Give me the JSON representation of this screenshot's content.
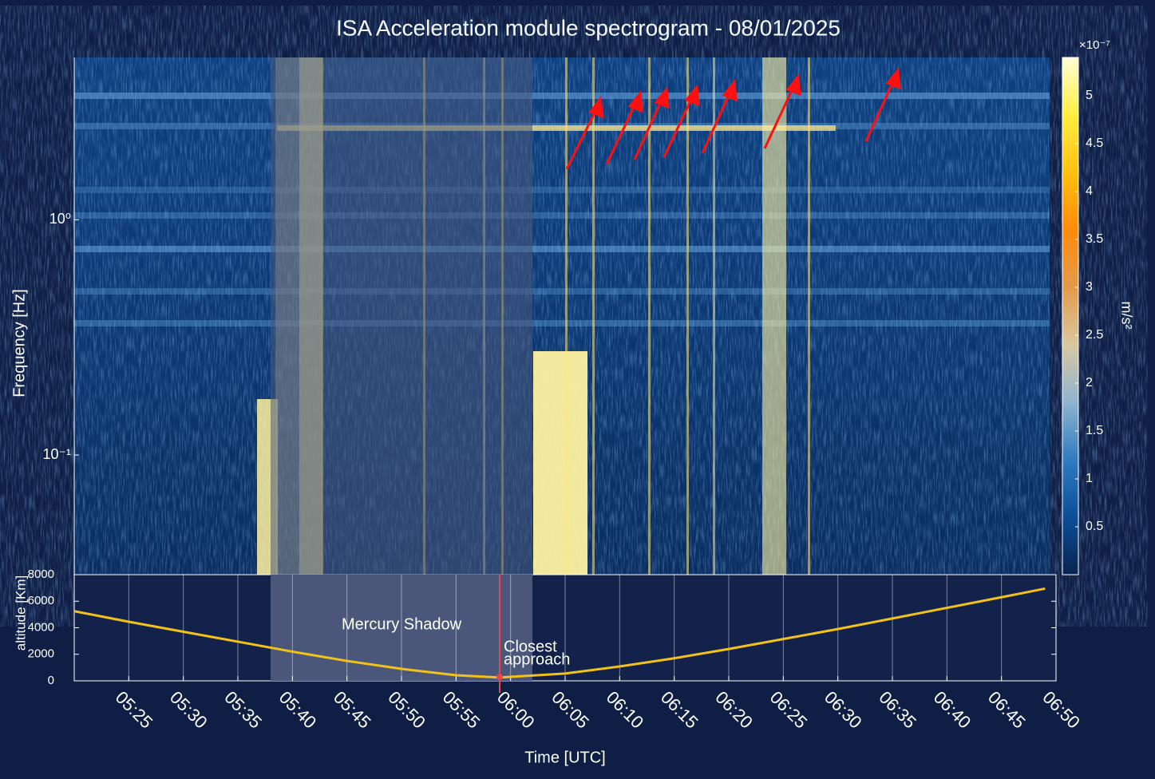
{
  "chart_data": [
    {
      "type": "spectrogram",
      "title": "ISA Acceleration module spectrogram - 08/01/2025",
      "ylabel": "Frequency [Hz]",
      "ylog": true,
      "ylim": [
        0.031,
        4.9
      ],
      "yticks": [
        {
          "value": 0.1,
          "label": "10⁻¹"
        },
        {
          "value": 1,
          "label": "10⁰"
        }
      ],
      "colorbar": {
        "label": "m/s²",
        "multiplier": "×10⁻⁷",
        "lim": [
          0,
          5.4
        ],
        "ticks": [
          0.5,
          1,
          1.5,
          2,
          2.5,
          3,
          3.5,
          4,
          4.5,
          5
        ],
        "colors": [
          "#0a2350",
          "#0b4e98",
          "#2f7cc0",
          "#8fb4d0",
          "#d8c8a0",
          "#e39a4c",
          "#ff8a0a",
          "#ffc010",
          "#ffee40",
          "#ffffd6"
        ]
      }
    },
    {
      "type": "line",
      "xlabel": "Time [UTC]",
      "ylabel": "altitude [Km]",
      "xlim": [
        "05:20",
        "06:50"
      ],
      "xticks": [
        "05:25",
        "05:30",
        "05:35",
        "05:40",
        "05:45",
        "05:50",
        "05:55",
        "06:00",
        "06:05",
        "06:10",
        "06:15",
        "06:20",
        "06:25",
        "06:30",
        "06:35",
        "06:40",
        "06:45",
        "06:50"
      ],
      "ylim": [
        0,
        8000
      ],
      "yticks": [
        0,
        2000,
        4000,
        6000,
        8000
      ],
      "grid": true,
      "series": [
        {
          "color": "#f2c21b",
          "x": [
            "05:20",
            "05:25",
            "05:30",
            "05:35",
            "05:40",
            "05:45",
            "05:50",
            "05:55",
            "05:59",
            "06:05",
            "06:10",
            "06:15",
            "06:20",
            "06:25",
            "06:30",
            "06:35",
            "06:40",
            "06:45",
            "06:49"
          ],
          "values": [
            5250,
            4450,
            3700,
            2950,
            2200,
            1500,
            900,
            420,
            250,
            550,
            1080,
            1700,
            2400,
            3150,
            3900,
            4700,
            5500,
            6300,
            6950
          ]
        }
      ],
      "shadow": {
        "label": "Mercury Shadow",
        "start": "05:38",
        "end": "06:02",
        "color": "#4b577a"
      },
      "closest_approach": {
        "label": [
          "Closest",
          "approach"
        ],
        "x": "05:59",
        "color": "#e8474a"
      }
    }
  ]
}
